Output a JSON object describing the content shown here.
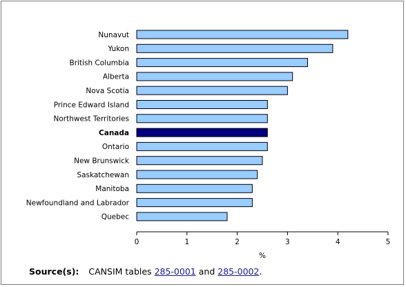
{
  "chart_data": {
    "type": "bar",
    "orientation": "horizontal",
    "categories": [
      "Nunavut",
      "Yukon",
      "British Columbia",
      "Alberta",
      "Nova Scotia",
      "Prince Edward Island",
      "Northwest Territories",
      "Canada",
      "Ontario",
      "New Brunswick",
      "Saskatchewan",
      "Manitoba",
      "Newfoundland and Labrador",
      "Quebec"
    ],
    "values": [
      4.2,
      3.9,
      3.4,
      3.1,
      3.0,
      2.6,
      2.6,
      2.6,
      2.6,
      2.5,
      2.4,
      2.3,
      2.3,
      1.8
    ],
    "highlight_category": "Canada",
    "xlabel": "%",
    "xlim": [
      0,
      5
    ],
    "xticks": [
      "0",
      "1",
      "2",
      "3",
      "4",
      "5"
    ],
    "grid": false,
    "colors": {
      "bar": "#99ccff",
      "highlight": "#000080",
      "outline": "#000000"
    }
  },
  "source": {
    "label": "Source(s):",
    "prefix": "CANSIM tables",
    "link1": "285-0001",
    "connector": "and",
    "link2": "285-0002",
    "suffix": "."
  }
}
